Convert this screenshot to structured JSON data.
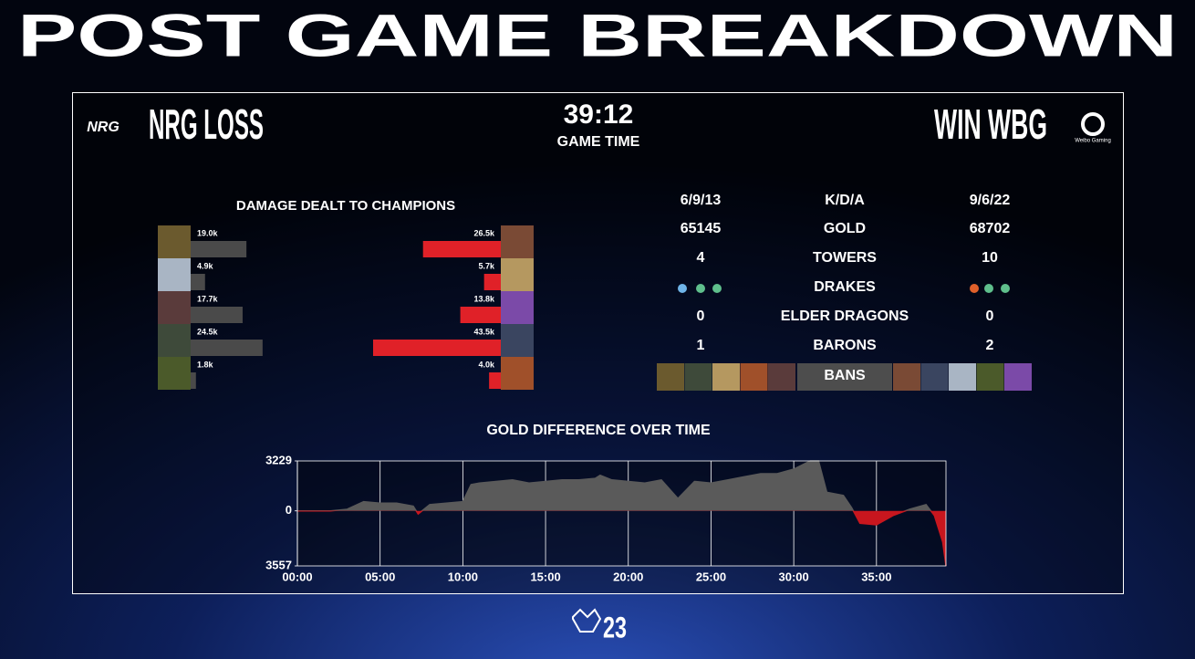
{
  "title": "POST GAME BREAKDOWN",
  "header": {
    "left_logo": "NRG",
    "left_result": "NRG LOSS",
    "game_time": "39:12",
    "game_time_label": "GAME TIME",
    "right_result": "WIN WBG",
    "right_logo": "Weibo Gaming"
  },
  "stats": {
    "rows": [
      {
        "left": "6/9/13",
        "label": "K/D/A",
        "right": "9/6/22"
      },
      {
        "left": 65145,
        "label": "GOLD",
        "right": 68702
      },
      {
        "left": 4,
        "label": "TOWERS",
        "right": 10
      },
      {
        "label": "DRAKES"
      },
      {
        "left": 0,
        "label": "ELDER DRAGONS",
        "right": 0
      },
      {
        "left": 1,
        "label": "BARONS",
        "right": 2
      },
      {
        "label": "BANS"
      }
    ]
  },
  "footer": {
    "logo": "23"
  },
  "chart_data": [
    {
      "type": "bar",
      "title": "DAMAGE DEALT TO CHAMPIONS",
      "series": [
        {
          "color": "#4a4a4a",
          "values": [
            19000,
            4900,
            17700,
            24500,
            1800
          ],
          "value_labels": [
            "19.0k",
            "4.9k",
            "17.7k",
            "24.5k",
            "1.8k"
          ]
        },
        {
          "color": "#e02128",
          "values": [
            26500,
            5700,
            13800,
            43500,
            4000
          ],
          "value_labels": [
            "26.5k",
            "5.7k",
            "13.8k",
            "43.5k",
            "4.0k"
          ]
        }
      ]
    },
    {
      "type": "area",
      "title": "GOLD DIFFERENCE OVER TIME",
      "x": [
        0,
        1,
        2,
        3,
        4,
        5,
        6,
        7,
        7.3,
        8,
        9,
        10,
        10.5,
        11,
        12,
        13,
        14,
        15,
        16,
        17,
        18,
        18.3,
        19,
        20,
        21,
        22,
        23,
        24,
        25,
        26,
        27,
        28,
        29,
        30,
        31,
        31.5,
        32,
        33,
        33.5,
        34,
        35,
        36,
        37,
        38,
        38.5,
        39,
        39.2
      ],
      "values": [
        0,
        0,
        0,
        100,
        600,
        500,
        500,
        300,
        -200,
        400,
        500,
        600,
        1700,
        1800,
        1900,
        2000,
        1800,
        1900,
        2000,
        2000,
        2100,
        2300,
        2000,
        1900,
        1800,
        2000,
        800,
        1900,
        1800,
        2000,
        2200,
        2400,
        2400,
        2700,
        3229,
        3229,
        1200,
        1000,
        200,
        -800,
        -900,
        -300,
        100,
        400,
        -300,
        -2000,
        -3557
      ],
      "xlim": [
        0,
        39.2
      ],
      "ylim": [
        -3557,
        3229
      ],
      "xticks": [
        {
          "value": 0,
          "label": "00:00"
        },
        {
          "value": 5,
          "label": "05:00"
        },
        {
          "value": 10,
          "label": "10:00"
        },
        {
          "value": 15,
          "label": "15:00"
        },
        {
          "value": 20,
          "label": "20:00"
        },
        {
          "value": 25,
          "label": "25:00"
        },
        {
          "value": 30,
          "label": "30:00"
        },
        {
          "value": 35,
          "label": "35:00"
        }
      ],
      "yticks": [
        3229,
        0,
        {
          "value": -3557,
          "label": "3557"
        }
      ],
      "grid": true,
      "color": "#5a5a5a",
      "negative_color": "#c8161e"
    }
  ]
}
